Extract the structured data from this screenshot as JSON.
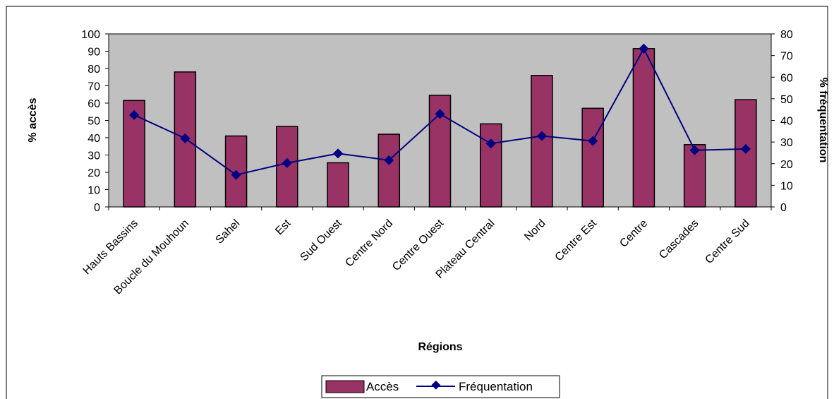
{
  "chart_data": {
    "type": "bar",
    "categories": [
      "Hauts Bassins",
      "Boucle du Mouhoun",
      "Sahel",
      "Est",
      "Sud Ouest",
      "Centre Nord",
      "Centre Ouest",
      "Plateau Central",
      "Nord",
      "Centre Est",
      "Centre",
      "Cascades",
      "Centre Sud"
    ],
    "series": [
      {
        "name": "Accès",
        "type": "bar",
        "axis": "left",
        "color": "#993366",
        "values": [
          61.5,
          78,
          41,
          46.5,
          25.5,
          42,
          64.5,
          48,
          76,
          57,
          91.5,
          36,
          62
        ]
      },
      {
        "name": "Fréquentation",
        "type": "line",
        "axis": "right",
        "color": "#000080",
        "values": [
          42.5,
          31.7,
          14.8,
          20.3,
          24.7,
          21.6,
          43,
          29.3,
          32.8,
          30.5,
          73.2,
          26.2,
          26.8
        ]
      }
    ],
    "xlabel": "Régions",
    "ylabel": "% accès",
    "y2label": "% fréquentation",
    "ylim": [
      0,
      100
    ],
    "y2lim": [
      0,
      80
    ],
    "yticks": [
      "0",
      "10",
      "20",
      "30",
      "40",
      "50",
      "60",
      "70",
      "80",
      "90",
      "100"
    ],
    "y2ticks": [
      "0",
      "10",
      "20",
      "30",
      "40",
      "50",
      "60",
      "70",
      "80"
    ],
    "grid": false,
    "legend": "bottom-center",
    "colors": {
      "plot_background": "#c0c0c0",
      "bar_fill": "#993366",
      "line": "#000080"
    }
  }
}
